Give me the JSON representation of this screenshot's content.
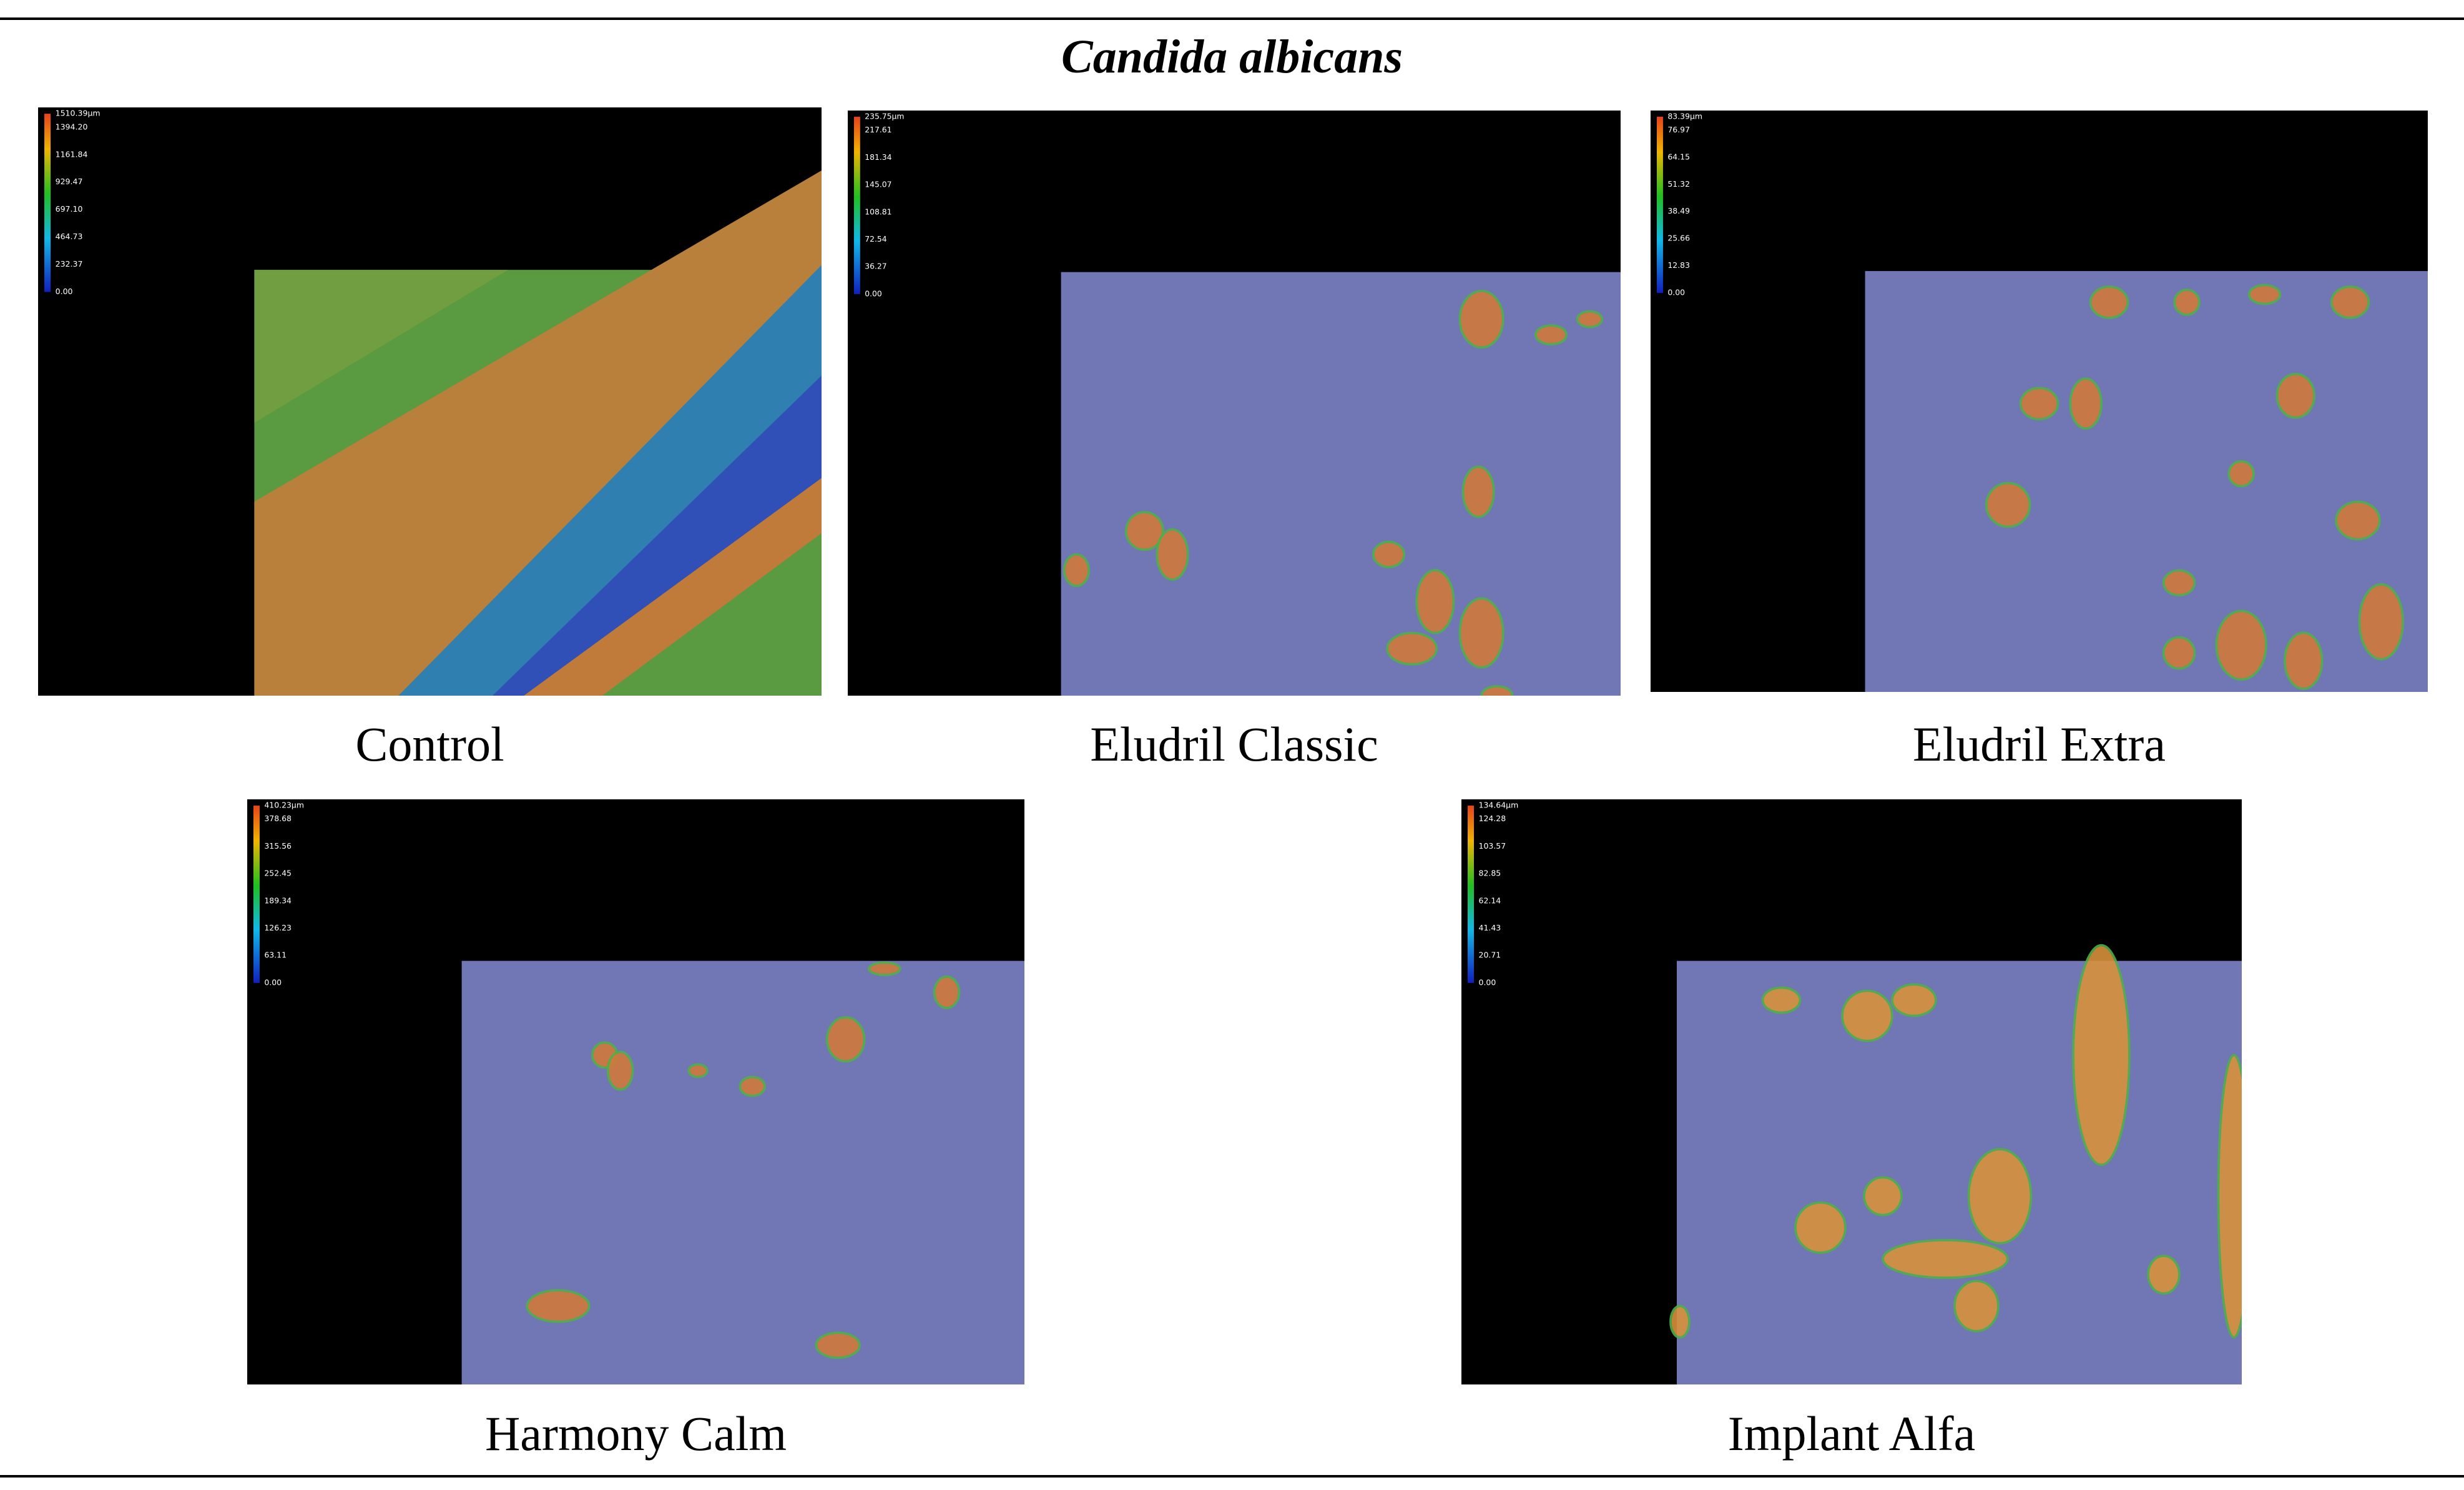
{
  "title": "Candida albicans",
  "panels": [
    {
      "caption": "Control",
      "scale": [
        "1510.39µm",
        "1394.20",
        "1161.84",
        "929.47",
        "697.10",
        "464.73",
        "232.37",
        "0.00"
      ]
    },
    {
      "caption": "Eludril Classic",
      "scale": [
        "235.75µm",
        "217.61",
        "181.34",
        "145.07",
        "108.81",
        "72.54",
        "36.27",
        "0.00"
      ]
    },
    {
      "caption": "Eludril Extra",
      "scale": [
        "83.39µm",
        "76.97",
        "64.15",
        "51.32",
        "38.49",
        "25.66",
        "12.83",
        "0.00"
      ]
    },
    {
      "caption": "Harmony Calm",
      "scale": [
        "410.23µm",
        "378.68",
        "315.56",
        "252.45",
        "189.34",
        "126.23",
        "63.11",
        "0.00"
      ]
    },
    {
      "caption": "Implant Alfa",
      "scale": [
        "134.64µm",
        "124.28",
        "103.57",
        "82.85",
        "62.14",
        "41.43",
        "20.71",
        "0.00"
      ]
    }
  ]
}
